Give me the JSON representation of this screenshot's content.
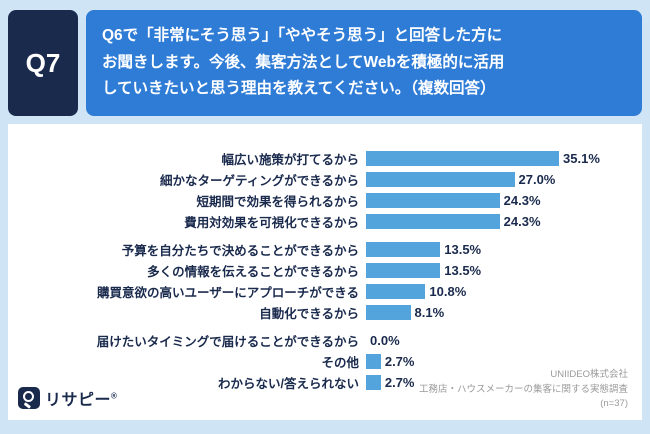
{
  "header": {
    "q_label": "Q7",
    "question_lines": [
      "Q6で「非常にそう思う」「ややそう思う」と回答した方に",
      "お聞きします。今後、集客方法としてWebを積極的に活用",
      "していきたいと思う理由を教えてください。（複数回答）"
    ]
  },
  "chart_data": {
    "type": "bar",
    "orientation": "horizontal",
    "categories": [
      "幅広い施策が打てるから",
      "細かなターゲティングができるから",
      "短期間で効果を得られるから",
      "費用対効果を可視化できるから",
      "予算を自分たちで決めることができるから",
      "多くの情報を伝えることができるから",
      "購買意欲の高いユーザーにアプローチができる",
      "自動化できるから",
      "届けたいタイミングで届けることができるから",
      "その他",
      "わからない/答えられない"
    ],
    "values": [
      35.1,
      27.0,
      24.3,
      24.3,
      13.5,
      13.5,
      10.8,
      8.1,
      0.0,
      2.7,
      2.7
    ],
    "value_labels": [
      "35.1%",
      "27.0%",
      "24.3%",
      "24.3%",
      "13.5%",
      "13.5%",
      "10.8%",
      "8.1%",
      "0.0%",
      "2.7%",
      "2.7%"
    ],
    "xlim": [
      0,
      40
    ],
    "bar_color": "#53a3dc",
    "group_breaks": [
      4,
      8
    ],
    "legend": "none",
    "grid": false
  },
  "footer": {
    "logo_text": "リサピー",
    "logo_reg": "®",
    "source_lines": [
      "UNIIDEO株式会社",
      "工務店・ハウスメーカーの集客に関する実態調査",
      "(n=37)"
    ]
  },
  "colors": {
    "background": "#cfe5f5",
    "navy": "#1a2a4d",
    "question_blue": "#2f7cd6",
    "bar_blue": "#53a3dc"
  }
}
